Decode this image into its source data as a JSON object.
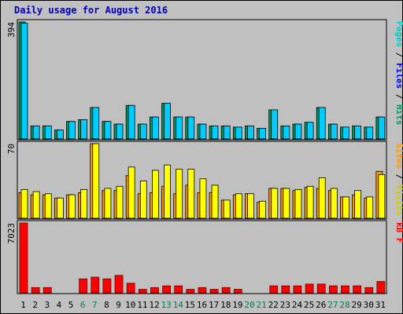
{
  "chart_data": {
    "title": "Daily usage for August 2016",
    "days": [
      "1",
      "2",
      "3",
      "4",
      "5",
      "6",
      "7",
      "8",
      "9",
      "10",
      "11",
      "12",
      "13",
      "14",
      "15",
      "16",
      "17",
      "18",
      "19",
      "20",
      "21",
      "22",
      "23",
      "24",
      "25",
      "26",
      "27",
      "28",
      "29",
      "30",
      "31"
    ],
    "weekend_days": [
      "6",
      "7",
      "13",
      "14",
      "20",
      "21",
      "27",
      "28"
    ],
    "panels": [
      {
        "type": "bar",
        "max_label": "394",
        "ylim": [
          0,
          394
        ],
        "series": [
          {
            "name": "Pages",
            "color": "#00ccff",
            "values": [
              390,
              44,
              44,
              30,
              59,
              65,
              106,
              59,
              50,
              113,
              50,
              74,
              120,
              74,
              74,
              50,
              44,
              44,
              40,
              44,
              36,
              98,
              44,
              50,
              56,
              106,
              50,
              40,
              44,
              40,
              74
            ]
          },
          {
            "name": "Hits",
            "color": "#009966",
            "values": [
              394,
              44,
              44,
              30,
              59,
              65,
              106,
              59,
              50,
              113,
              50,
              74,
              120,
              74,
              74,
              50,
              44,
              44,
              40,
              44,
              36,
              98,
              44,
              50,
              56,
              106,
              50,
              40,
              44,
              40,
              74
            ]
          }
        ],
        "legend": [
          {
            "text": "Pages",
            "color": "#00cccc"
          },
          {
            "text": " / ",
            "color": "#000000"
          },
          {
            "text": "Files",
            "color": "#0000ff"
          },
          {
            "text": " / ",
            "color": "#000000"
          },
          {
            "text": "Hits",
            "color": "#009966"
          }
        ]
      },
      {
        "type": "bar",
        "max_label": "70",
        "ylim": [
          0,
          70
        ],
        "series": [
          {
            "name": "Visits",
            "color": "#ffff00",
            "values": [
              27,
              25,
              23,
              19,
              22,
              27,
              70,
              28,
              30,
              48,
              35,
              45,
              50,
              46,
              46,
              37,
              31,
              17,
              23,
              23,
              16,
              28,
              28,
              27,
              30,
              38,
              28,
              20,
              26,
              20,
              41
            ]
          },
          {
            "name": "Sites",
            "color": "#ff9900",
            "values": [
              24,
              22,
              22,
              19,
              22,
              24,
              70,
              26,
              26,
              40,
              23,
              24,
              30,
              23,
              31,
              24,
              24,
              17,
              22,
              23,
              15,
              28,
              28,
              26,
              29,
              28,
              26,
              20,
              22,
              19,
              44
            ]
          }
        ],
        "legend": [
          {
            "text": "Sites",
            "color": "#ff9900"
          },
          {
            "text": " / ",
            "color": "#000000"
          },
          {
            "text": "Visits",
            "color": "#cccc00"
          }
        ]
      },
      {
        "type": "bar",
        "max_label": "7023",
        "ylim": [
          0,
          7023
        ],
        "series": [
          {
            "name": "KB F",
            "color": "#ff0000",
            "values": [
              7023,
              526,
              526,
              0,
              0,
              1403,
              1578,
              1403,
              1753,
              965,
              351,
              526,
              702,
              702,
              351,
              526,
              351,
              526,
              351,
              0,
              0,
              702,
              702,
              702,
              877,
              877,
              702,
              702,
              702,
              526,
              1140
            ]
          }
        ],
        "legend": [
          {
            "text": "kB F",
            "color": "#ff0000"
          }
        ]
      }
    ]
  }
}
